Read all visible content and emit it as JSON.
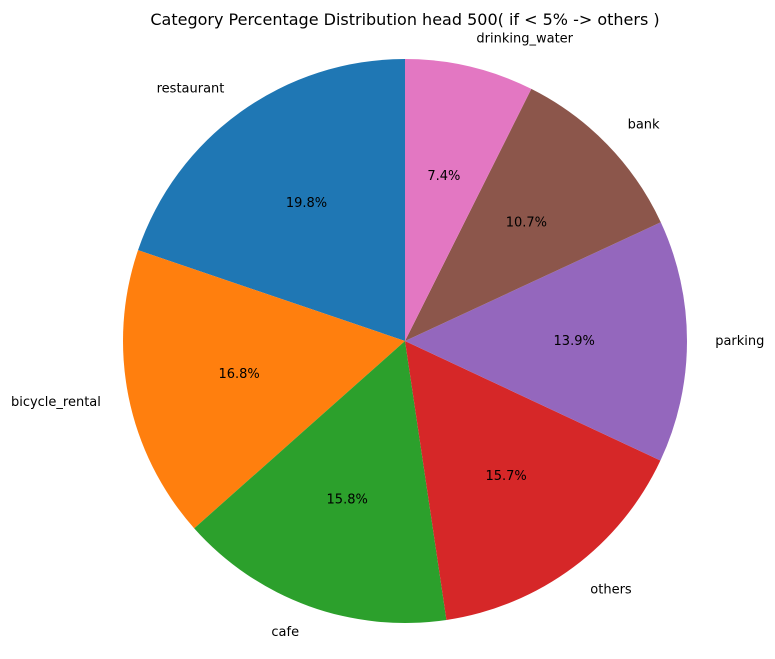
{
  "chart_data": {
    "type": "pie",
    "title": "Category Percentage Distribution head 500( if < 5% -> others )",
    "start_angle_deg": 90,
    "direction": "counterclockwise",
    "slices": [
      {
        "label": "restaurant",
        "value": 19.8,
        "pct_label": "19.8%",
        "color": "#1f77b4"
      },
      {
        "label": "bicycle_rental",
        "value": 16.8,
        "pct_label": "16.8%",
        "color": "#ff7f0e"
      },
      {
        "label": "cafe",
        "value": 15.8,
        "pct_label": "15.8%",
        "color": "#2ca02c"
      },
      {
        "label": "others",
        "value": 15.7,
        "pct_label": "15.7%",
        "color": "#d62728"
      },
      {
        "label": "parking",
        "value": 13.9,
        "pct_label": "13.9%",
        "color": "#9467bd"
      },
      {
        "label": "bank",
        "value": 10.7,
        "pct_label": "10.7%",
        "color": "#8c564b"
      },
      {
        "label": "drinking_water",
        "value": 7.4,
        "pct_label": "7.4%",
        "color": "#e377c2"
      }
    ]
  }
}
